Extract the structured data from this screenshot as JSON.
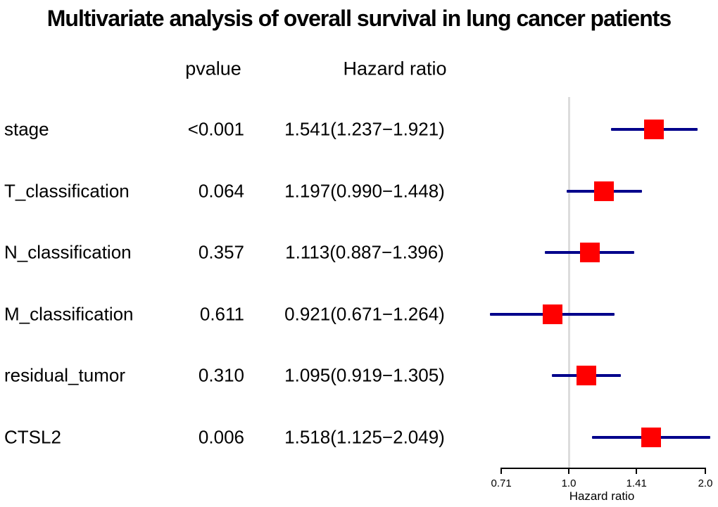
{
  "title": "Multivariate analysis of overall survival in lung cancer patients",
  "columns": {
    "pvalue": "pvalue",
    "hazard_ratio": "Hazard ratio"
  },
  "colors": {
    "marker": "#ff0000",
    "ci_line": "#00008b",
    "reference_line": "#dcdcdc",
    "axis": "#000000",
    "text": "#000000"
  },
  "chart_data": {
    "type": "forest",
    "title": "Multivariate analysis of overall survival in lung cancer patients",
    "xlabel": "Hazard ratio",
    "xscale": "log2",
    "xticks": [
      "0.71",
      "1.0",
      "1.41",
      "2.0"
    ],
    "xlim": [
      0.71,
      2.0
    ],
    "ref_value": 1.0,
    "rows": [
      {
        "label": "stage",
        "pvalue": "<0.001",
        "hr_text": "1.541(1.237−1.921)",
        "hr": 1.541,
        "ci_low": 1.237,
        "ci_high": 1.921
      },
      {
        "label": "T_classification",
        "pvalue": "0.064",
        "hr_text": "1.197(0.990−1.448)",
        "hr": 1.197,
        "ci_low": 0.99,
        "ci_high": 1.448
      },
      {
        "label": "N_classification",
        "pvalue": "0.357",
        "hr_text": "1.113(0.887−1.396)",
        "hr": 1.113,
        "ci_low": 0.887,
        "ci_high": 1.396
      },
      {
        "label": "M_classification",
        "pvalue": "0.611",
        "hr_text": "0.921(0.671−1.264)",
        "hr": 0.921,
        "ci_low": 0.671,
        "ci_high": 1.264
      },
      {
        "label": "residual_tumor",
        "pvalue": "0.310",
        "hr_text": "1.095(0.919−1.305)",
        "hr": 1.095,
        "ci_low": 0.919,
        "ci_high": 1.305
      },
      {
        "label": "CTSL2",
        "pvalue": "0.006",
        "hr_text": "1.518(1.125−2.049)",
        "hr": 1.518,
        "ci_low": 1.125,
        "ci_high": 2.049
      }
    ]
  }
}
